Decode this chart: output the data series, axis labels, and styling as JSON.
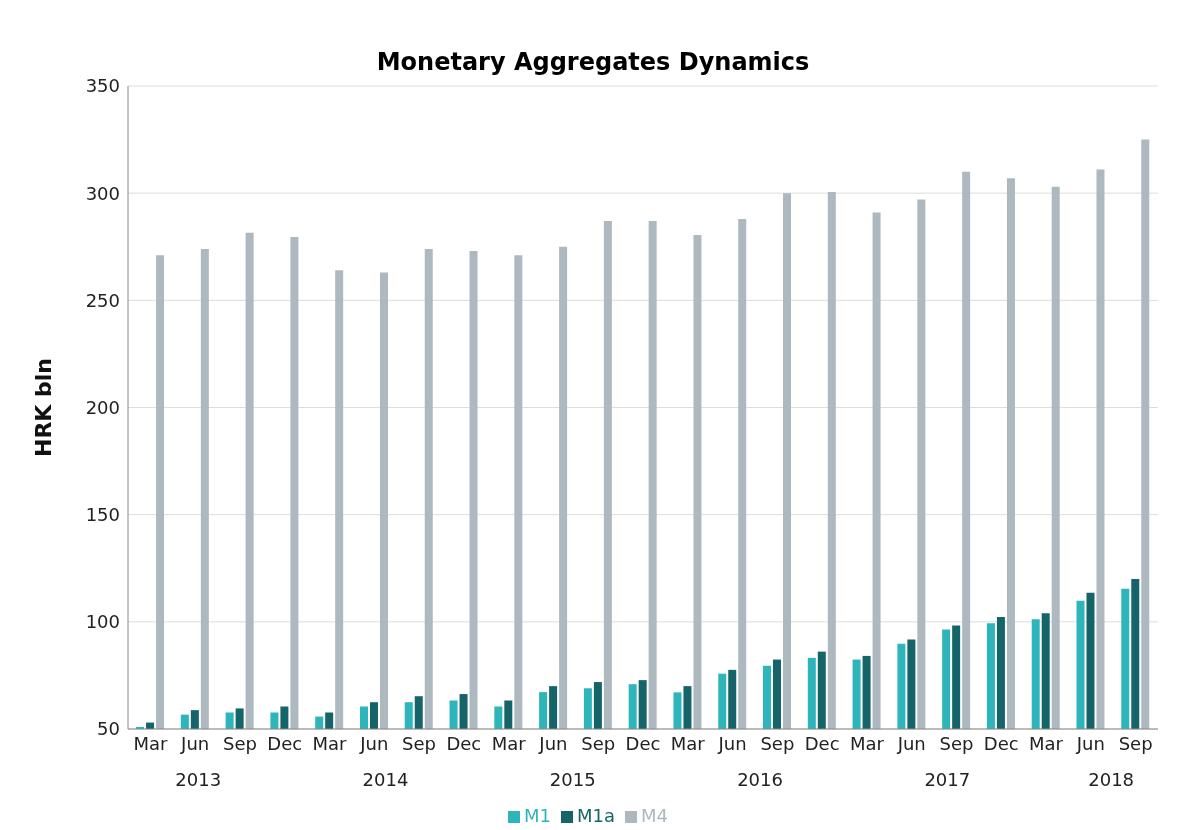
{
  "chart_data": {
    "type": "bar",
    "title": "Monetary Aggregates Dynamics",
    "ylabel": "HRK bln",
    "categories": [
      "Mar",
      "Jun",
      "Sep",
      "Dec",
      "Mar",
      "Jun",
      "Sep",
      "Dec",
      "Mar",
      "Jun",
      "Sep",
      "Dec",
      "Mar",
      "Jun",
      "Sep",
      "Dec",
      "Mar",
      "Jun",
      "Sep",
      "Dec",
      "Mar",
      "Jun",
      "Sep"
    ],
    "annotations": [
      "2013",
      "2014",
      "2015",
      "2016",
      "2017",
      "2018"
    ],
    "series": [
      {
        "name": "M1",
        "color": "#2eb5bb",
        "values": [
          51,
          56.7,
          57.7,
          57.7,
          55.8,
          60.5,
          62.5,
          63.3,
          60.5,
          67.2,
          69,
          70.9,
          67.1,
          75.8,
          79.5,
          83.2,
          82.4,
          89.8,
          96.4,
          99.3,
          101.2,
          109.8,
          115.4
        ]
      },
      {
        "name": "M1a",
        "color": "#156469",
        "values": [
          53,
          58.8,
          59.6,
          60.5,
          57.7,
          62.5,
          65.3,
          66.3,
          63.3,
          70,
          71.9,
          72.8,
          70,
          77.6,
          82.4,
          86.1,
          84.1,
          91.7,
          98.3,
          102.2,
          104,
          113.6,
          120
        ]
      },
      {
        "name": "M4",
        "color": "#adb8bf",
        "values": [
          271,
          274,
          281.5,
          279.5,
          264,
          263,
          274,
          273,
          271,
          275,
          287,
          287,
          280.5,
          288,
          300,
          300.5,
          291,
          297,
          310,
          307,
          303,
          311,
          325
        ]
      }
    ],
    "ylim": [
      50,
      350
    ],
    "yticks": [
      50,
      100,
      150,
      200,
      250,
      300,
      350
    ],
    "grid": "y",
    "legend": "bottom"
  }
}
